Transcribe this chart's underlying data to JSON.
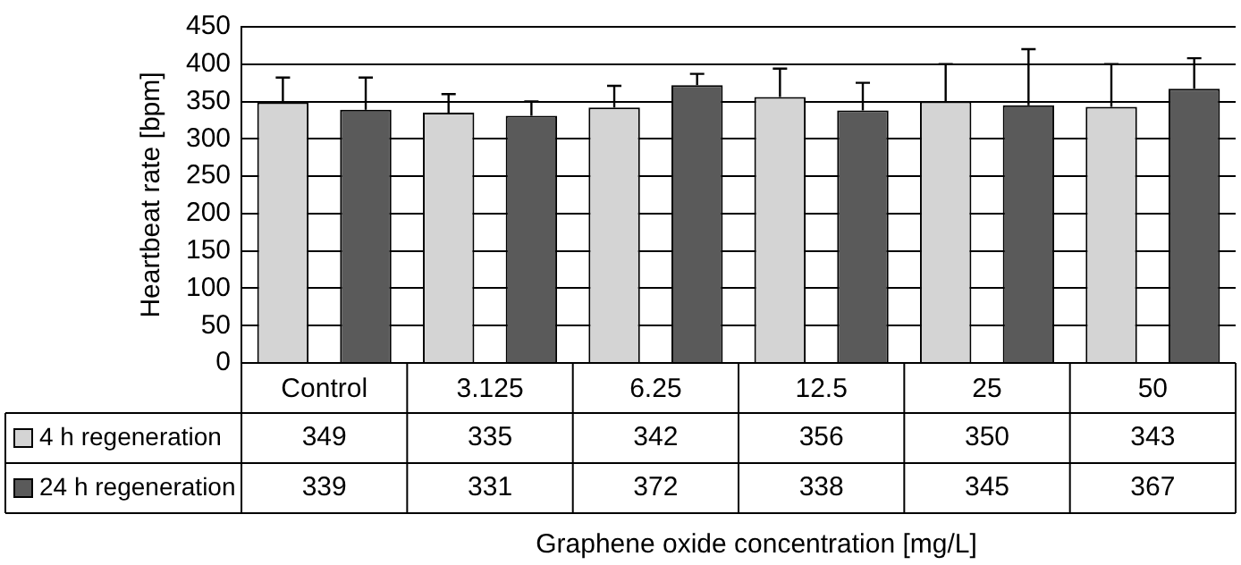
{
  "chart_data": {
    "type": "bar",
    "xlabel": "Graphene oxide concentration [mg/L]",
    "ylabel": "Heartbeat rate [bpm]",
    "categories": [
      "Control",
      "3.125",
      "6.25",
      "12.5",
      "25",
      "50"
    ],
    "series": [
      {
        "name": "4 h regeneration",
        "color": "#d4d4d4",
        "values": [
          349,
          335,
          342,
          356,
          350,
          343
        ],
        "errors": [
          [
            349,
            382
          ],
          [
            335,
            360
          ],
          [
            342,
            371
          ],
          [
            356,
            394
          ],
          [
            350,
            400
          ],
          [
            343,
            400
          ]
        ]
      },
      {
        "name": "24 h regeneration",
        "color": "#5a5a5a",
        "values": [
          339,
          331,
          372,
          338,
          345,
          367
        ],
        "errors": [
          [
            339,
            382
          ],
          [
            331,
            350
          ],
          [
            372,
            387
          ],
          [
            338,
            375
          ],
          [
            345,
            420
          ],
          [
            367,
            408
          ]
        ]
      }
    ],
    "ylim": [
      0,
      450
    ],
    "yticks": [
      0,
      50,
      100,
      150,
      200,
      250,
      300,
      350,
      400,
      450
    ],
    "grid": "y",
    "legend": "bottom",
    "data_labels": true
  }
}
